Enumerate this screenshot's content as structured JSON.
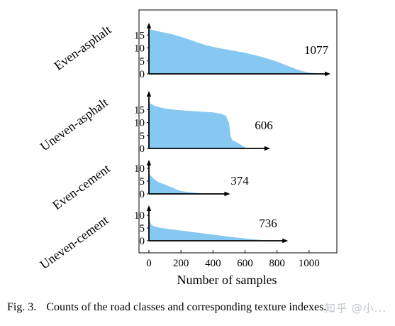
{
  "caption": {
    "label": "Fig. 3.",
    "text": "Counts of the road classes and corresponding texture indexes."
  },
  "watermark": "知乎 @小...",
  "chart_data": {
    "type": "area",
    "xlabel": "Number of samples",
    "xlim": [
      0,
      1100
    ],
    "x_ticks": [
      0,
      200,
      400,
      600,
      800,
      1000
    ],
    "fill_color": "#87c8f2",
    "grid": false,
    "panels": [
      {
        "name": "Even-asphalt",
        "count_label": "1077",
        "count": 1077,
        "ylim": [
          0,
          18
        ],
        "y_ticks": [
          0,
          5,
          10,
          15
        ],
        "curve_x": [
          0,
          20,
          50,
          100,
          150,
          200,
          250,
          300,
          350,
          400,
          450,
          500,
          550,
          600,
          650,
          700,
          750,
          800,
          850,
          900,
          950,
          1000,
          1050,
          1077
        ],
        "curve_y": [
          17.3,
          17,
          16.5,
          15.9,
          15.2,
          14.3,
          13.3,
          12.2,
          11.2,
          10.4,
          9.8,
          9.3,
          8.7,
          8.1,
          7.4,
          6.6,
          5.7,
          4.7,
          3.5,
          2.3,
          1.2,
          0.5,
          0.2,
          0
        ]
      },
      {
        "name": "Uneven-asphalt",
        "count_label": "606",
        "count": 606,
        "ylim": [
          0,
          18
        ],
        "y_ticks": [
          0,
          5,
          10,
          15
        ],
        "curve_x": [
          0,
          10,
          30,
          60,
          100,
          150,
          200,
          250,
          300,
          350,
          400,
          450,
          480,
          500,
          510,
          520,
          540,
          570,
          600,
          606
        ],
        "curve_y": [
          17.8,
          17.3,
          16.6,
          16,
          15.4,
          15,
          14.7,
          14.5,
          14.3,
          14.1,
          13.9,
          13.4,
          12.6,
          10,
          4.8,
          3.3,
          2.6,
          1.6,
          0.4,
          0
        ]
      },
      {
        "name": "Even-cement",
        "count_label": "374",
        "count": 374,
        "ylim": [
          0,
          12
        ],
        "y_ticks": [
          0,
          5,
          10
        ],
        "curve_x": [
          0,
          5,
          15,
          30,
          60,
          100,
          150,
          180,
          200,
          250,
          300,
          350,
          374
        ],
        "curve_y": [
          8.8,
          7.7,
          6.9,
          5.9,
          4.6,
          3.6,
          2.4,
          1.5,
          1.1,
          0.7,
          0.4,
          0.1,
          0
        ]
      },
      {
        "name": "Uneven-cement",
        "count_label": "736",
        "count": 736,
        "ylim": [
          0,
          12
        ],
        "y_ticks": [
          0,
          5,
          10
        ],
        "curve_x": [
          0,
          3,
          8,
          15,
          30,
          60,
          100,
          200,
          300,
          400,
          500,
          600,
          700,
          736
        ],
        "curve_y": [
          11,
          9,
          7.4,
          6.3,
          5.7,
          5.2,
          4.8,
          4,
          3.2,
          2.4,
          1.6,
          0.9,
          0.3,
          0
        ]
      }
    ]
  }
}
